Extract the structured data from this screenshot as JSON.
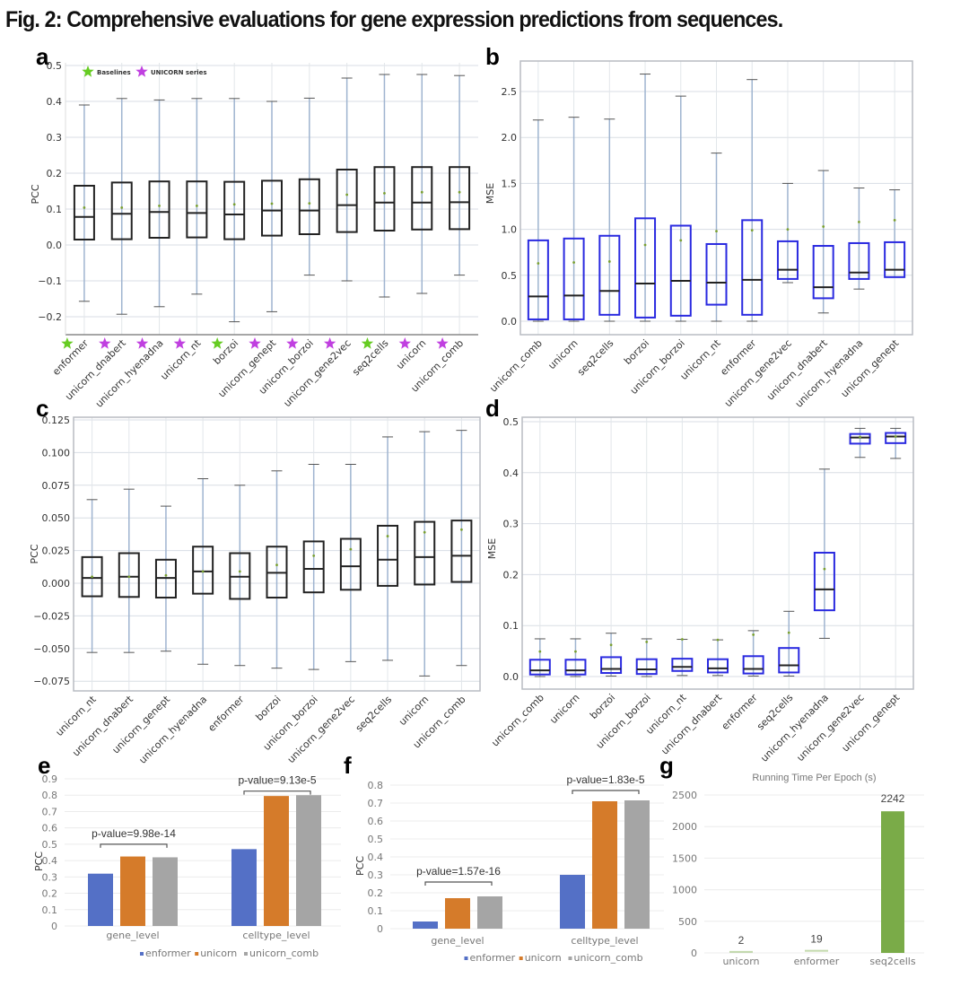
{
  "figure": {
    "title": "Fig. 2: Comprehensive evaluations for gene expression predictions from sequences."
  },
  "colors": {
    "box_black": "#222222",
    "box_blue": "#2a2ae0",
    "whisker": "#9fb4d0",
    "mean_marker": "#7aa030",
    "star_green": "#66cc22",
    "star_purple": "#c040e0",
    "enformer": "#5470c6",
    "unicorn": "#d57b2a",
    "unicorn_comb": "#a5a5a5",
    "seq2cells": "#7aab48"
  },
  "chart_data": [
    {
      "panel": "a",
      "type": "box",
      "title": "",
      "xlabel": "",
      "ylabel": "PCC",
      "ylim": [
        -0.25,
        0.5
      ],
      "yticks": [
        "0.5",
        "0.4",
        "0.3",
        "0.2",
        "0.1",
        "0.0",
        "−0.1",
        "−0.2"
      ],
      "ytick_values": [
        0.5,
        0.4,
        0.3,
        0.2,
        0.1,
        0.0,
        -0.1,
        -0.2
      ],
      "grid": true,
      "box_color": "black",
      "legend": {
        "position": "top-left",
        "entries": [
          {
            "label": "Baselines",
            "marker": "star",
            "color": "green"
          },
          {
            "label": "UNICORN series",
            "marker": "star",
            "color": "purple"
          }
        ]
      },
      "categories": [
        "enformer",
        "unicorn_dnabert",
        "unicorn_hyenadna",
        "unicorn_nt",
        "borzoi",
        "unicorn_genept",
        "unicorn_borzoi",
        "unicorn_gene2vec",
        "seq2cells",
        "unicorn",
        "unicorn_comb"
      ],
      "category_markers": [
        "green",
        "purple",
        "purple",
        "purple",
        "green",
        "purple",
        "purple",
        "purple",
        "green",
        "purple",
        "purple"
      ],
      "series": [
        {
          "name": "enformer",
          "whislo": -0.157,
          "q1": 0.015,
          "med": 0.078,
          "q3": 0.165,
          "whishi": 0.39,
          "mean": 0.104
        },
        {
          "name": "unicorn_dnabert",
          "whislo": -0.193,
          "q1": 0.016,
          "med": 0.087,
          "q3": 0.174,
          "whishi": 0.408,
          "mean": 0.104
        },
        {
          "name": "unicorn_hyenadna",
          "whislo": -0.172,
          "q1": 0.02,
          "med": 0.092,
          "q3": 0.177,
          "whishi": 0.404,
          "mean": 0.109
        },
        {
          "name": "unicorn_nt",
          "whislo": -0.137,
          "q1": 0.021,
          "med": 0.089,
          "q3": 0.177,
          "whishi": 0.408,
          "mean": 0.109
        },
        {
          "name": "borzoi",
          "whislo": -0.214,
          "q1": 0.016,
          "med": 0.085,
          "q3": 0.176,
          "whishi": 0.408,
          "mean": 0.113
        },
        {
          "name": "unicorn_genept",
          "whislo": -0.186,
          "q1": 0.026,
          "med": 0.096,
          "q3": 0.179,
          "whishi": 0.4,
          "mean": 0.115
        },
        {
          "name": "unicorn_borzoi",
          "whislo": -0.084,
          "q1": 0.03,
          "med": 0.096,
          "q3": 0.183,
          "whishi": 0.409,
          "mean": 0.116
        },
        {
          "name": "unicorn_gene2vec",
          "whislo": -0.1,
          "q1": 0.036,
          "med": 0.111,
          "q3": 0.21,
          "whishi": 0.465,
          "mean": 0.14
        },
        {
          "name": "seq2cells",
          "whislo": -0.145,
          "q1": 0.04,
          "med": 0.118,
          "q3": 0.217,
          "whishi": 0.475,
          "mean": 0.144
        },
        {
          "name": "unicorn",
          "whislo": -0.135,
          "q1": 0.043,
          "med": 0.118,
          "q3": 0.217,
          "whishi": 0.475,
          "mean": 0.147
        },
        {
          "name": "unicorn_comb",
          "whislo": -0.084,
          "q1": 0.044,
          "med": 0.119,
          "q3": 0.217,
          "whishi": 0.472,
          "mean": 0.147
        }
      ]
    },
    {
      "panel": "b",
      "type": "box",
      "title": "",
      "xlabel": "",
      "ylabel": "MSE",
      "ylim": [
        -0.13,
        2.82
      ],
      "yticks": [
        "2.5",
        "2.0",
        "1.5",
        "1.0",
        "0.5",
        "0.0"
      ],
      "ytick_values": [
        2.5,
        2.0,
        1.5,
        1.0,
        0.5,
        0.0
      ],
      "grid": true,
      "box_color": "blue",
      "categories": [
        "unicorn_comb",
        "unicorn",
        "seq2cells",
        "borzoi",
        "unicorn_borzoi",
        "unicorn_nt",
        "enformer",
        "unicorn_gene2vec",
        "unicorn_dnabert",
        "unicorn_hyenadna",
        "unicorn_genept"
      ],
      "series": [
        {
          "name": "unicorn_comb",
          "whislo": 0.0,
          "q1": 0.02,
          "med": 0.27,
          "q3": 0.88,
          "whishi": 2.19,
          "mean": 0.63
        },
        {
          "name": "unicorn",
          "whislo": 0.0,
          "q1": 0.02,
          "med": 0.28,
          "q3": 0.9,
          "whishi": 2.22,
          "mean": 0.64
        },
        {
          "name": "seq2cells",
          "whislo": 0.0,
          "q1": 0.07,
          "med": 0.33,
          "q3": 0.93,
          "whishi": 2.2,
          "mean": 0.65
        },
        {
          "name": "borzoi",
          "whislo": 0.0,
          "q1": 0.04,
          "med": 0.41,
          "q3": 1.12,
          "whishi": 2.69,
          "mean": 0.83
        },
        {
          "name": "unicorn_borzoi",
          "whislo": 0.0,
          "q1": 0.06,
          "med": 0.44,
          "q3": 1.04,
          "whishi": 2.45,
          "mean": 0.88
        },
        {
          "name": "unicorn_nt",
          "whislo": 0.0,
          "q1": 0.18,
          "med": 0.42,
          "q3": 0.84,
          "whishi": 1.83,
          "mean": 0.98
        },
        {
          "name": "enformer",
          "whislo": 0.0,
          "q1": 0.07,
          "med": 0.45,
          "q3": 1.1,
          "whishi": 2.63,
          "mean": 0.99
        },
        {
          "name": "unicorn_gene2vec",
          "whislo": 0.42,
          "q1": 0.46,
          "med": 0.56,
          "q3": 0.87,
          "whishi": 1.5,
          "mean": 1.0
        },
        {
          "name": "unicorn_dnabert",
          "whislo": 0.09,
          "q1": 0.25,
          "med": 0.37,
          "q3": 0.82,
          "whishi": 1.64,
          "mean": 1.03
        },
        {
          "name": "unicorn_hyenadna",
          "whislo": 0.35,
          "q1": 0.46,
          "med": 0.53,
          "q3": 0.85,
          "whishi": 1.45,
          "mean": 1.08
        },
        {
          "name": "unicorn_genept",
          "whislo": 0.48,
          "q1": 0.48,
          "med": 0.56,
          "q3": 0.86,
          "whishi": 1.43,
          "mean": 1.1
        }
      ]
    },
    {
      "panel": "c",
      "type": "box",
      "title": "",
      "xlabel": "",
      "ylabel": "PCC",
      "ylim": [
        -0.0795,
        0.1265
      ],
      "yticks": [
        "0.125",
        "0.100",
        "0.075",
        "0.050",
        "0.025",
        "0.000",
        "−0.025",
        "−0.050",
        "−0.075"
      ],
      "ytick_values": [
        0.125,
        0.1,
        0.075,
        0.05,
        0.025,
        0.0,
        -0.025,
        -0.05,
        -0.075
      ],
      "grid": true,
      "box_color": "black",
      "categories": [
        "unicorn_nt",
        "unicorn_dnabert",
        "unicorn_genept",
        "unicorn_hyenadna",
        "enformer",
        "borzoi",
        "unicorn_borzoi",
        "unicorn_gene2vec",
        "seq2cells",
        "unicorn",
        "unicorn_comb"
      ],
      "series": [
        {
          "name": "unicorn_nt",
          "whislo": -0.053,
          "q1": -0.01,
          "med": 0.004,
          "q3": 0.02,
          "whishi": 0.064,
          "mean": 0.005
        },
        {
          "name": "unicorn_dnabert",
          "whislo": -0.053,
          "q1": -0.0105,
          "med": 0.005,
          "q3": 0.023,
          "whishi": 0.072,
          "mean": 0.005
        },
        {
          "name": "unicorn_genept",
          "whislo": -0.052,
          "q1": -0.011,
          "med": 0.004,
          "q3": 0.018,
          "whishi": 0.059,
          "mean": 0.006
        },
        {
          "name": "unicorn_hyenadna",
          "whislo": -0.062,
          "q1": -0.008,
          "med": 0.009,
          "q3": 0.028,
          "whishi": 0.08,
          "mean": 0.009
        },
        {
          "name": "enformer",
          "whislo": -0.063,
          "q1": -0.012,
          "med": 0.005,
          "q3": 0.023,
          "whishi": 0.075,
          "mean": 0.009
        },
        {
          "name": "borzoi",
          "whislo": -0.065,
          "q1": -0.011,
          "med": 0.008,
          "q3": 0.028,
          "whishi": 0.086,
          "mean": 0.014
        },
        {
          "name": "unicorn_borzoi",
          "whislo": -0.066,
          "q1": -0.007,
          "med": 0.011,
          "q3": 0.032,
          "whishi": 0.091,
          "mean": 0.021
        },
        {
          "name": "unicorn_gene2vec",
          "whislo": -0.06,
          "q1": -0.005,
          "med": 0.013,
          "q3": 0.034,
          "whishi": 0.091,
          "mean": 0.026
        },
        {
          "name": "seq2cells",
          "whislo": -0.059,
          "q1": -0.002,
          "med": 0.018,
          "q3": 0.044,
          "whishi": 0.112,
          "mean": 0.036
        },
        {
          "name": "unicorn",
          "whislo": -0.071,
          "q1": -0.001,
          "med": 0.02,
          "q3": 0.047,
          "whishi": 0.116,
          "mean": 0.039
        },
        {
          "name": "unicorn_comb",
          "whislo": -0.063,
          "q1": 0.001,
          "med": 0.021,
          "q3": 0.048,
          "whishi": 0.117,
          "mean": 0.041
        }
      ]
    },
    {
      "panel": "d",
      "type": "box",
      "title": "",
      "xlabel": "",
      "ylabel": "MSE",
      "ylim": [
        -0.025,
        0.515
      ],
      "yticks": [
        "0.5",
        "0.4",
        "0.3",
        "0.2",
        "0.1",
        "0.0"
      ],
      "ytick_values": [
        0.5,
        0.4,
        0.3,
        0.2,
        0.1,
        0.0
      ],
      "grid": true,
      "box_color": "blue",
      "categories": [
        "unicorn_comb",
        "unicorn",
        "borzoi",
        "unicorn_borzoi",
        "unicorn_nt",
        "unicorn_dnabert",
        "enformer",
        "seq2cells",
        "unicorn_hyenadna",
        "unicorn_gene2vec",
        "unicorn_genept"
      ],
      "series": [
        {
          "name": "unicorn_comb",
          "whislo": 0.0,
          "q1": 0.004,
          "med": 0.012,
          "q3": 0.033,
          "whishi": 0.074,
          "mean": 0.049
        },
        {
          "name": "unicorn",
          "whislo": 0.0,
          "q1": 0.004,
          "med": 0.012,
          "q3": 0.033,
          "whishi": 0.074,
          "mean": 0.049
        },
        {
          "name": "borzoi",
          "whislo": 0.001,
          "q1": 0.007,
          "med": 0.015,
          "q3": 0.038,
          "whishi": 0.085,
          "mean": 0.062
        },
        {
          "name": "unicorn_borzoi",
          "whislo": 0.0,
          "q1": 0.005,
          "med": 0.014,
          "q3": 0.034,
          "whishi": 0.074,
          "mean": 0.068
        },
        {
          "name": "unicorn_nt",
          "whislo": 0.002,
          "q1": 0.011,
          "med": 0.019,
          "q3": 0.035,
          "whishi": 0.073,
          "mean": 0.073
        },
        {
          "name": "unicorn_dnabert",
          "whislo": 0.002,
          "q1": 0.008,
          "med": 0.016,
          "q3": 0.034,
          "whishi": 0.072,
          "mean": 0.072
        },
        {
          "name": "enformer",
          "whislo": 0.001,
          "q1": 0.006,
          "med": 0.015,
          "q3": 0.04,
          "whishi": 0.09,
          "mean": 0.082
        },
        {
          "name": "seq2cells",
          "whislo": 0.001,
          "q1": 0.008,
          "med": 0.022,
          "q3": 0.056,
          "whishi": 0.128,
          "mean": 0.086
        },
        {
          "name": "unicorn_hyenadna",
          "whislo": 0.075,
          "q1": 0.13,
          "med": 0.171,
          "q3": 0.243,
          "whishi": 0.407,
          "mean": 0.211
        },
        {
          "name": "unicorn_gene2vec",
          "whislo": 0.43,
          "q1": 0.457,
          "med": 0.469,
          "q3": 0.476,
          "whishi": 0.487,
          "mean": 0.47
        },
        {
          "name": "unicorn_genept",
          "whislo": 0.428,
          "q1": 0.458,
          "med": 0.471,
          "q3": 0.478,
          "whishi": 0.487,
          "mean": 0.471
        }
      ]
    },
    {
      "panel": "e",
      "type": "bar",
      "title": "",
      "xlabel": "",
      "ylabel": "PCC",
      "ylim": [
        0,
        0.9
      ],
      "yticks": [
        "0.9",
        "0.8",
        "0.7",
        "0.6",
        "0.5",
        "0.4",
        "0.3",
        "0.2",
        "0.1",
        "0"
      ],
      "ytick_values": [
        0.9,
        0.8,
        0.7,
        0.6,
        0.5,
        0.4,
        0.3,
        0.2,
        0.1,
        0
      ],
      "grid": true,
      "legend_position": "bottom",
      "categories": [
        "gene_level",
        "celltype_level"
      ],
      "series": [
        {
          "name": "enformer",
          "values": [
            0.32,
            0.47
          ]
        },
        {
          "name": "unicorn",
          "values": [
            0.425,
            0.795
          ]
        },
        {
          "name": "unicorn_comb",
          "values": [
            0.42,
            0.8
          ]
        }
      ],
      "annotations": [
        {
          "category": "gene_level",
          "text": "p-value=9.98e-14",
          "bracket_level": 0.5
        },
        {
          "category": "celltype_level",
          "text": "p-value=9.13e-5",
          "bracket_level": 0.825
        }
      ]
    },
    {
      "panel": "f",
      "type": "bar",
      "title": "",
      "xlabel": "",
      "ylabel": "PCC",
      "ylim": [
        0,
        0.8
      ],
      "yticks": [
        "0.8",
        "0.7",
        "0.6",
        "0.5",
        "0.4",
        "0.3",
        "0.2",
        "0.1",
        "0"
      ],
      "ytick_values": [
        0.8,
        0.7,
        0.6,
        0.5,
        0.4,
        0.3,
        0.2,
        0.1,
        0
      ],
      "grid": true,
      "legend_position": "bottom",
      "categories": [
        "gene_level",
        "celltype_level"
      ],
      "series": [
        {
          "name": "enformer",
          "values": [
            0.04,
            0.3
          ]
        },
        {
          "name": "unicorn",
          "values": [
            0.17,
            0.71
          ]
        },
        {
          "name": "unicorn_comb",
          "values": [
            0.18,
            0.715
          ]
        }
      ],
      "annotations": [
        {
          "category": "gene_level",
          "text": "p-value=1.57e-16",
          "bracket_level": 0.26
        },
        {
          "category": "celltype_level",
          "text": "p-value=1.83e-5",
          "bracket_level": 0.77
        }
      ]
    },
    {
      "panel": "g",
      "type": "bar",
      "title": "Running Time Per Epoch (s)",
      "xlabel": "",
      "ylabel": "",
      "ylim": [
        0,
        2500
      ],
      "yticks": [
        "2500",
        "2000",
        "1500",
        "1000",
        "500",
        "0"
      ],
      "ytick_values": [
        2500,
        2000,
        1500,
        1000,
        500,
        0
      ],
      "grid": true,
      "categories": [
        "unicorn",
        "enformer",
        "seq2cells"
      ],
      "values": [
        2,
        19,
        2242
      ],
      "data_labels": [
        "2",
        "19",
        "2242"
      ]
    }
  ]
}
